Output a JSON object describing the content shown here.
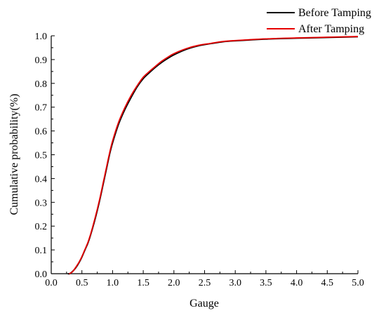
{
  "chart_data": {
    "type": "line",
    "xlabel": "Gauge",
    "ylabel": "Cumulative probability(%)",
    "xlim": [
      0.0,
      5.0
    ],
    "ylim": [
      0.0,
      1.0
    ],
    "x_ticks": [
      "0.0",
      "0.5",
      "1.0",
      "1.5",
      "2.0",
      "2.5",
      "3.0",
      "3.5",
      "4.0",
      "4.5",
      "5.0"
    ],
    "y_ticks": [
      "0.0",
      "0.1",
      "0.2",
      "0.3",
      "0.4",
      "0.5",
      "0.6",
      "0.7",
      "0.8",
      "0.9",
      "1.0"
    ],
    "grid": false,
    "legend_position": "top-right",
    "series": [
      {
        "name": "Before Tamping",
        "color": "#000000",
        "x": [
          0.27,
          0.3,
          0.35,
          0.4,
          0.45,
          0.5,
          0.55,
          0.6,
          0.65,
          0.7,
          0.75,
          0.8,
          0.85,
          0.9,
          0.95,
          1.0,
          1.1,
          1.2,
          1.3,
          1.4,
          1.5,
          1.6,
          1.7,
          1.8,
          1.9,
          2.0,
          2.2,
          2.4,
          2.6,
          2.8,
          3.0,
          3.5,
          4.0,
          4.5,
          5.0
        ],
        "y": [
          0.0,
          0.0,
          0.01,
          0.025,
          0.045,
          0.07,
          0.1,
          0.13,
          0.17,
          0.215,
          0.265,
          0.32,
          0.38,
          0.44,
          0.5,
          0.55,
          0.63,
          0.69,
          0.74,
          0.785,
          0.82,
          0.845,
          0.868,
          0.888,
          0.905,
          0.92,
          0.943,
          0.958,
          0.967,
          0.975,
          0.979,
          0.986,
          0.99,
          0.993,
          0.996
        ]
      },
      {
        "name": "After Tamping",
        "color": "#e60000",
        "x": [
          0.29,
          0.32,
          0.36,
          0.4,
          0.45,
          0.5,
          0.55,
          0.6,
          0.65,
          0.7,
          0.75,
          0.8,
          0.85,
          0.9,
          0.95,
          1.0,
          1.1,
          1.2,
          1.3,
          1.4,
          1.5,
          1.6,
          1.7,
          1.8,
          1.9,
          2.0,
          2.2,
          2.4,
          2.6,
          2.8,
          3.0,
          3.5,
          4.0,
          4.5,
          5.0
        ],
        "y": [
          0.0,
          0.003,
          0.012,
          0.027,
          0.047,
          0.072,
          0.102,
          0.133,
          0.173,
          0.22,
          0.27,
          0.325,
          0.386,
          0.446,
          0.506,
          0.558,
          0.638,
          0.698,
          0.748,
          0.79,
          0.826,
          0.85,
          0.872,
          0.893,
          0.91,
          0.925,
          0.946,
          0.96,
          0.968,
          0.976,
          0.98,
          0.987,
          0.991,
          0.994,
          0.997
        ]
      }
    ]
  }
}
